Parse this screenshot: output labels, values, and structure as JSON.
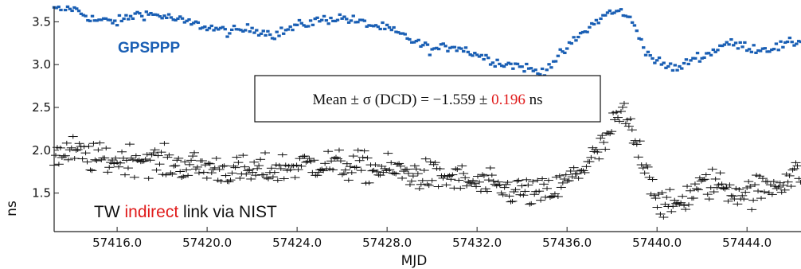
{
  "chart_data": {
    "type": "scatter",
    "xlabel": "MJD",
    "ylabel": "ns",
    "xlim": [
      57413.2,
      57446.4
    ],
    "ylim": [
      1.05,
      3.68
    ],
    "x_ticks": [
      57416.0,
      57420.0,
      57424.0,
      57428.0,
      57432.0,
      57436.0,
      57440.0,
      57444.0
    ],
    "x_tick_labels": [
      "57416.0",
      "57420.0",
      "57424.0",
      "57428.0",
      "57432.0",
      "57436.0",
      "57440.0",
      "57444.0"
    ],
    "y_ticks": [
      1.5,
      2.0,
      2.5,
      3.0,
      3.5
    ],
    "y_tick_labels": [
      "1.5",
      "2.0",
      "2.5",
      "3.0",
      "3.5"
    ],
    "grid": false,
    "series": [
      {
        "name": "GPSPPP",
        "color": "#1a5fb4",
        "marker": "dot",
        "trend": [
          [
            57413.2,
            3.64
          ],
          [
            57414.0,
            3.66
          ],
          [
            57415.0,
            3.52
          ],
          [
            57416.0,
            3.5
          ],
          [
            57417.0,
            3.6
          ],
          [
            57418.0,
            3.57
          ],
          [
            57419.0,
            3.5
          ],
          [
            57420.0,
            3.44
          ],
          [
            57421.0,
            3.38
          ],
          [
            57422.0,
            3.42
          ],
          [
            57423.0,
            3.35
          ],
          [
            57424.0,
            3.45
          ],
          [
            57425.0,
            3.52
          ],
          [
            57426.0,
            3.55
          ],
          [
            57427.0,
            3.48
          ],
          [
            57428.0,
            3.42
          ],
          [
            57429.0,
            3.3
          ],
          [
            57430.0,
            3.17
          ],
          [
            57431.0,
            3.22
          ],
          [
            57432.0,
            3.12
          ],
          [
            57433.0,
            3.02
          ],
          [
            57434.0,
            2.98
          ],
          [
            57434.8,
            2.9
          ],
          [
            57435.6,
            3.08
          ],
          [
            57436.4,
            3.3
          ],
          [
            57437.2,
            3.48
          ],
          [
            57437.8,
            3.6
          ],
          [
            57438.5,
            3.62
          ],
          [
            57439.0,
            3.45
          ],
          [
            57439.6,
            3.12
          ],
          [
            57440.2,
            3.0
          ],
          [
            57441.0,
            2.95
          ],
          [
            57441.6,
            3.08
          ],
          [
            57442.3,
            3.12
          ],
          [
            57443.0,
            3.25
          ],
          [
            57443.8,
            3.22
          ],
          [
            57444.5,
            3.18
          ],
          [
            57445.3,
            3.2
          ],
          [
            57446.4,
            3.28
          ]
        ],
        "scatter_sigma_ns": 0.04
      },
      {
        "name": "TW indirect link via NIST",
        "color": "#111111",
        "marker": "plus",
        "trend": [
          [
            57413.2,
            1.95
          ],
          [
            57414.0,
            1.98
          ],
          [
            57415.0,
            1.9
          ],
          [
            57416.0,
            1.88
          ],
          [
            57417.0,
            1.92
          ],
          [
            57418.0,
            1.85
          ],
          [
            57419.0,
            1.82
          ],
          [
            57420.0,
            1.8
          ],
          [
            57421.0,
            1.76
          ],
          [
            57422.0,
            1.74
          ],
          [
            57423.0,
            1.78
          ],
          [
            57424.0,
            1.82
          ],
          [
            57425.0,
            1.85
          ],
          [
            57426.0,
            1.82
          ],
          [
            57427.0,
            1.8
          ],
          [
            57428.0,
            1.77
          ],
          [
            57429.0,
            1.73
          ],
          [
            57430.0,
            1.7
          ],
          [
            57431.0,
            1.67
          ],
          [
            57432.0,
            1.6
          ],
          [
            57433.0,
            1.55
          ],
          [
            57434.0,
            1.52
          ],
          [
            57434.8,
            1.48
          ],
          [
            57435.6,
            1.55
          ],
          [
            57436.3,
            1.7
          ],
          [
            57436.9,
            1.85
          ],
          [
            57437.5,
            2.0
          ],
          [
            57438.0,
            2.25
          ],
          [
            57438.5,
            2.45
          ],
          [
            57439.0,
            2.1
          ],
          [
            57439.5,
            1.85
          ],
          [
            57440.0,
            1.45
          ],
          [
            57440.5,
            1.3
          ],
          [
            57441.0,
            1.4
          ],
          [
            57441.8,
            1.55
          ],
          [
            57442.5,
            1.62
          ],
          [
            57443.2,
            1.55
          ],
          [
            57444.0,
            1.5
          ],
          [
            57445.0,
            1.58
          ],
          [
            57446.4,
            1.75
          ]
        ],
        "scatter_sigma_ns": 0.13
      }
    ],
    "annotations": {
      "gps_label": "GPSPPP",
      "tw_label_prefix": "TW ",
      "tw_label_highlight": "indirect",
      "tw_label_suffix": " link via NIST",
      "box_text_prefix": "Mean ± σ (DCD) = −1.559 ± ",
      "box_text_highlight": "0.196",
      "box_text_suffix": " ns",
      "highlight_color": "#e01b1b"
    }
  }
}
